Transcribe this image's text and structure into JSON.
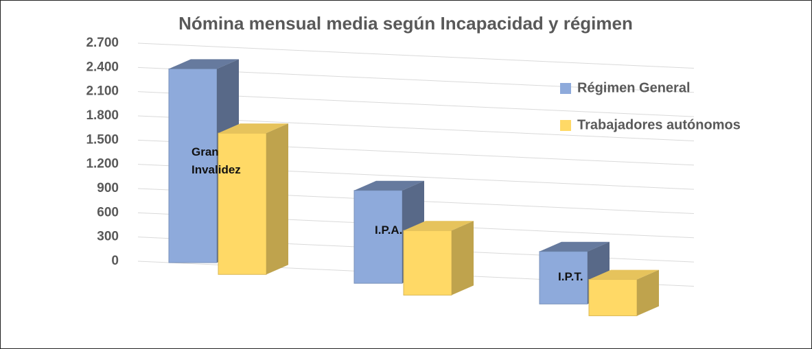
{
  "chart_data": {
    "type": "bar3d",
    "title": "Nómina mensual media según Incapacidad y régimen",
    "categories": [
      "Gran Invalidez",
      "I.P.A.",
      "I.P.T."
    ],
    "series": [
      {
        "name": "Régimen General",
        "color": "#8eaadb",
        "values": [
          2400,
          1150,
          650
        ]
      },
      {
        "name": "Trabajadores autónomos",
        "color": "#ffd966",
        "values": [
          1750,
          800,
          450
        ]
      }
    ],
    "ylim": [
      0,
      2700
    ],
    "yticks": [
      0,
      300,
      600,
      900,
      {
        "value": 1200,
        "label": "1.200"
      },
      {
        "value": 1500,
        "label": "1.500"
      },
      {
        "value": 1800,
        "label": "1.800"
      },
      {
        "value": 2100,
        "label": "2.100"
      },
      {
        "value": 2400,
        "label": "2.400"
      },
      {
        "value": 2700,
        "label": "2.700"
      }
    ],
    "grid": true,
    "legend": "right"
  }
}
